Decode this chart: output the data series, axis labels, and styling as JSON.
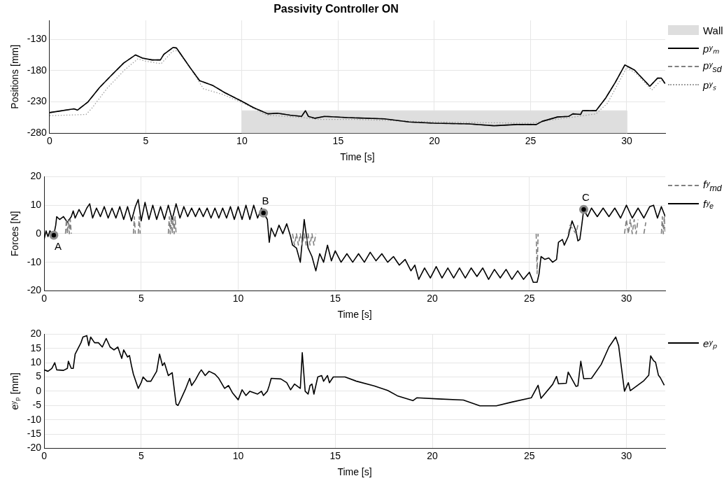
{
  "chart_data": [
    {
      "type": "line",
      "title": "Passivity Controller ON",
      "xlabel": "Time [s]",
      "ylabel": "Positions [mm]",
      "xlim": [
        0,
        32
      ],
      "xticks": [
        0,
        5,
        10,
        15,
        20,
        25,
        30
      ],
      "ylim": [
        -280,
        -100
      ],
      "yticks": [
        -280,
        -230,
        -180,
        -130
      ],
      "grid": true,
      "legend": "right",
      "marker": "none",
      "series": [
        {
          "name": "Wall",
          "type": "area",
          "color": "#dedede",
          "x": [
            10,
            10,
            20,
            30,
            30
          ],
          "values": [
            -280,
            -244,
            -244,
            -244,
            -280
          ]
        },
        {
          "name": "pʸₘ",
          "color": "#000000",
          "line_style": "solid",
          "x": [
            0,
            0.65,
            1.27,
            1.45,
            2.0,
            2.6,
            3.2,
            3.85,
            4.47,
            4.83,
            5.33,
            5.76,
            5.94,
            6.43,
            6.6,
            7.3,
            7.8,
            8.5,
            9.1,
            10,
            10.6,
            11.35,
            11.85,
            12.5,
            13.1,
            13.3,
            13.45,
            13.8,
            14.3,
            15.5,
            17.4,
            18.7,
            20,
            21.8,
            23.1,
            24.3,
            25.3,
            25.6,
            26.4,
            26.98,
            27.2,
            27.6,
            27.7,
            28.4,
            28.9,
            29.4,
            29.9,
            30.4,
            31.2,
            31.6,
            31.8,
            32
          ],
          "values": [
            -247,
            -244,
            -241,
            -243,
            -230,
            -207,
            -188,
            -168,
            -155,
            -160,
            -163,
            -163,
            -154,
            -143,
            -144,
            -175,
            -196,
            -204,
            -215,
            -229,
            -239,
            -249,
            -248,
            -251,
            -253,
            -244,
            -253,
            -256,
            -253,
            -255,
            -257,
            -262,
            -264,
            -265,
            -268,
            -266,
            -266,
            -261,
            -254,
            -253,
            -249,
            -250,
            -244,
            -244,
            -224,
            -199,
            -171,
            -179,
            -205,
            -192,
            -192,
            -201
          ]
        },
        {
          "name": "pʸ$_{sd}$",
          "color": "#808080",
          "line_style": "dashed",
          "x": [
            0,
            0.65,
            1.27,
            1.45,
            2.0,
            2.6,
            3.2,
            3.85,
            4.47,
            4.83,
            5.33,
            5.76,
            5.94,
            6.43,
            6.6,
            7.3,
            7.8,
            8.5,
            9.1,
            10,
            10.6,
            11.35,
            11.85,
            12.5,
            13.1,
            13.3,
            13.45,
            13.8,
            14.3,
            15.5,
            17.4,
            18.7,
            20,
            21.8,
            23.1,
            24.3,
            25.3,
            25.6,
            26.4,
            26.98,
            27.2,
            27.6,
            27.7,
            28.4,
            28.9,
            29.4,
            29.9,
            30.4,
            31.2,
            31.6,
            31.8,
            32
          ],
          "values": [
            -247,
            -244,
            -241,
            -243,
            -230,
            -207,
            -188,
            -168,
            -155,
            -160,
            -163,
            -163,
            -154,
            -143,
            -144,
            -175,
            -196,
            -204,
            -215,
            -229,
            -239,
            -249,
            -248,
            -251,
            -253,
            -244,
            -253,
            -256,
            -253,
            -255,
            -257,
            -262,
            -264,
            -265,
            -268,
            -266,
            -266,
            -261,
            -254,
            -253,
            -249,
            -250,
            -244,
            -244,
            -224,
            -199,
            -171,
            -179,
            -205,
            -192,
            -192,
            -201
          ]
        },
        {
          "name": "pʸₛ",
          "color": "#a0a0a0",
          "line_style": "dotted",
          "x": [
            0,
            1.9,
            2.2,
            3,
            3.9,
            4.6,
            5,
            5.8,
            6.4,
            6.65,
            7.4,
            8,
            9,
            10,
            11.3,
            13.2,
            14,
            16,
            20,
            25,
            26.5,
            27.5,
            28.4,
            29,
            30,
            30.5,
            31.3,
            31.8,
            32
          ],
          "values": [
            -252,
            -250,
            -240,
            -208,
            -179,
            -161,
            -165,
            -169,
            -149,
            -148,
            -180,
            -209,
            -218,
            -231,
            -251,
            -255,
            -258,
            -258,
            -262,
            -264,
            -257,
            -253,
            -249,
            -232,
            -175,
            -185,
            -211,
            -195,
            -202
          ]
        }
      ]
    },
    {
      "type": "line",
      "xlabel": "Time [s]",
      "ylabel": "Forces [N]",
      "xlim": [
        0,
        32
      ],
      "xticks": [
        0,
        5,
        10,
        15,
        20,
        25,
        30
      ],
      "ylim": [
        -20,
        20
      ],
      "yticks": [
        -20,
        -10,
        0,
        10,
        20
      ],
      "grid": true,
      "legend": "right",
      "marker": "none",
      "annotations": [
        {
          "text": "A",
          "x": 0.5,
          "y": -0.5
        },
        {
          "text": "B",
          "x": 11.3,
          "y": 7.3
        },
        {
          "text": "C",
          "x": 27.8,
          "y": 8.5
        }
      ],
      "series": [
        {
          "name": "fʸ$_{md}$",
          "color": "#808080",
          "line_style": "dashed",
          "x": [
            1.1,
            1.15,
            1.2,
            1.25,
            1.3,
            1.35,
            1.4,
            1.45,
            4.6,
            4.65,
            4.7,
            4.75,
            4.85,
            4.9,
            4.95,
            5.0,
            6.4,
            6.45,
            6.5,
            6.55,
            6.6,
            6.65,
            6.7,
            6.75,
            6.8,
            6.85,
            12.8,
            12.9,
            13.0,
            13.1,
            13.2,
            13.3,
            13.4,
            13.5,
            13.6,
            13.7,
            13.8,
            13.9,
            14.0,
            14.05,
            25.35,
            25.4,
            25.45,
            25.5,
            27.0,
            27.1,
            27.4,
            27.5,
            27.55,
            29.9,
            30.0,
            30.1,
            30.2,
            30.3,
            30.4,
            30.5,
            30.6,
            30.65,
            30.9,
            31.0,
            31.05,
            31.8,
            31.85,
            31.9,
            31.95,
            32
          ],
          "values": [
            0,
            5,
            0,
            5,
            0,
            5,
            0,
            null,
            0,
            6,
            0,
            null,
            0,
            6,
            0,
            null,
            0,
            6,
            0,
            6,
            0,
            6,
            0,
            6,
            0,
            null,
            0,
            -4,
            0,
            -4,
            0,
            -4,
            0,
            -4,
            0,
            -4,
            0,
            -4,
            0,
            null,
            0,
            -14,
            0,
            null,
            0,
            3,
            0,
            3,
            null,
            0,
            5,
            0,
            5,
            0,
            5,
            0,
            5,
            null,
            0,
            4,
            null,
            0,
            6,
            0,
            6,
            0
          ]
        },
        {
          "name": "fʸₑ",
          "color": "#000000",
          "line_style": "solid",
          "x": [
            0,
            0.1,
            0.2,
            0.3,
            0.4,
            0.5,
            0.6,
            0.65,
            0.8,
            1.0,
            1.2,
            1.4,
            1.5,
            1.6,
            1.8,
            2.0,
            2.2,
            2.35,
            2.5,
            2.7,
            2.9,
            3.1,
            3.3,
            3.5,
            3.7,
            3.9,
            4.1,
            4.3,
            4.5,
            4.7,
            4.85,
            5.0,
            5.2,
            5.4,
            5.6,
            5.8,
            6.0,
            6.2,
            6.4,
            6.6,
            6.8,
            7.0,
            7.2,
            7.4,
            7.6,
            7.8,
            8.0,
            8.2,
            8.4,
            8.6,
            8.8,
            9.0,
            9.2,
            9.4,
            9.6,
            9.8,
            10.0,
            10.2,
            10.4,
            10.6,
            10.8,
            11.0,
            11.2,
            11.3,
            11.5,
            11.6,
            11.7,
            11.9,
            12.1,
            12.3,
            12.5,
            12.7,
            12.8,
            13.0,
            13.2,
            13.4,
            13.6,
            13.8,
            14.0,
            14.2,
            14.4,
            14.6,
            14.8,
            15.0,
            15.3,
            15.6,
            15.9,
            16.2,
            16.5,
            16.8,
            17.1,
            17.4,
            17.7,
            18.0,
            18.3,
            18.6,
            18.9,
            19.1,
            19.3,
            19.6,
            19.9,
            20.2,
            20.5,
            20.8,
            21.1,
            21.4,
            21.7,
            22.0,
            22.3,
            22.6,
            22.9,
            23.2,
            23.5,
            23.8,
            24.1,
            24.4,
            24.7,
            25.0,
            25.2,
            25.4,
            25.5,
            25.6,
            25.8,
            26.0,
            26.2,
            26.4,
            26.5,
            26.7,
            26.8,
            27.0,
            27.2,
            27.4,
            27.5,
            27.6,
            27.7,
            27.8,
            28.0,
            28.2,
            28.5,
            28.8,
            29.1,
            29.4,
            29.7,
            30.0,
            30.3,
            30.6,
            30.9,
            31.2,
            31.4,
            31.6,
            31.8,
            32.0
          ],
          "values": [
            -2,
            1,
            -1,
            1,
            0,
            -0.5,
            3,
            6,
            5,
            6,
            4,
            6,
            8,
            5.5,
            8.5,
            6,
            9,
            10.5,
            5.5,
            9,
            6,
            9.5,
            5.5,
            9,
            5.5,
            9.5,
            5,
            9.5,
            4.5,
            9.5,
            12,
            4.5,
            11,
            5,
            10,
            5,
            9.5,
            5,
            10,
            5,
            10.5,
            5.5,
            9.5,
            6,
            9,
            6,
            9,
            6,
            9,
            5.5,
            9,
            5.5,
            9,
            5.5,
            9.5,
            5,
            9.5,
            5,
            10,
            5,
            10,
            5.5,
            9,
            7.3,
            5,
            -3,
            2,
            -1,
            3,
            0,
            3.5,
            -1,
            -4,
            -5,
            -10,
            5,
            -5,
            -8,
            -13,
            -7,
            -10,
            -4,
            -9.5,
            -6,
            -10,
            -7,
            -10,
            -7,
            -10,
            -6.5,
            -9.5,
            -7,
            -10,
            -8,
            -11,
            -9,
            -13,
            -11,
            -16,
            -12,
            -15.5,
            -11.5,
            -15.5,
            -12,
            -15.5,
            -12,
            -15.5,
            -12,
            -15,
            -12,
            -16,
            -12.5,
            -15.5,
            -12.5,
            -16,
            -13,
            -16,
            -13.5,
            -17,
            -17,
            -14,
            -8,
            -9,
            -8.5,
            -10,
            -9,
            -3,
            -2,
            -4,
            -1,
            4.5,
            1,
            -2.5,
            -2,
            3,
            8.5,
            6,
            9,
            6,
            9,
            6,
            9,
            5.5,
            10,
            5.5,
            9,
            5.5,
            9.5,
            10,
            5.5,
            9.5,
            6
          ]
        }
      ]
    },
    {
      "type": "line",
      "xlabel": "Time [s]",
      "ylabel": "eʸₚ [mm]",
      "xlim": [
        0,
        32
      ],
      "xticks": [
        0,
        5,
        10,
        15,
        20,
        25,
        30
      ],
      "ylim": [
        -20,
        20
      ],
      "yticks": [
        -20,
        -15,
        -10,
        -5,
        0,
        5,
        10,
        15,
        20
      ],
      "grid": true,
      "legend": "right",
      "marker": "none",
      "series": [
        {
          "name": "eʸₚ",
          "color": "#000000",
          "line_style": "solid",
          "x": [
            0,
            0.2,
            0.4,
            0.55,
            0.65,
            1.0,
            1.2,
            1.25,
            1.4,
            1.5,
            1.6,
            1.9,
            2.0,
            2.2,
            2.3,
            2.4,
            2.6,
            2.8,
            3.0,
            3.2,
            3.4,
            3.6,
            3.8,
            4.0,
            4.1,
            4.3,
            4.4,
            4.5,
            4.6,
            4.75,
            4.85,
            5.0,
            5.1,
            5.3,
            5.5,
            5.8,
            5.95,
            6.1,
            6.2,
            6.4,
            6.6,
            6.8,
            6.9,
            7.1,
            7.3,
            7.5,
            7.6,
            7.8,
            8.0,
            8.1,
            8.3,
            8.5,
            8.8,
            9.0,
            9.3,
            9.5,
            9.7,
            10.0,
            10.2,
            10.4,
            10.6,
            11.0,
            11.2,
            11.3,
            11.5,
            11.6,
            11.7,
            12.2,
            12.5,
            12.7,
            12.9,
            13.2,
            13.3,
            13.45,
            13.6,
            13.7,
            13.8,
            13.9,
            14.1,
            14.3,
            14.4,
            14.6,
            14.7,
            14.9,
            15.5,
            16.1,
            17,
            17.7,
            18.2,
            19,
            19.2,
            20.3,
            21.6,
            22.45,
            23.3,
            24.1,
            25.1,
            25.45,
            25.6,
            26.2,
            26.4,
            26.5,
            26.9,
            27.0,
            27.4,
            27.5,
            27.65,
            27.8,
            28.2,
            28.7,
            29.1,
            29.45,
            29.6,
            29.9,
            30.1,
            30.2,
            30.9,
            31.15,
            31.25,
            31.4,
            31.5,
            31.65,
            31.75,
            31.95
          ],
          "values": [
            7.5,
            7,
            8,
            10,
            7.5,
            7.3,
            8,
            10.5,
            8,
            8,
            13,
            17,
            19,
            19.5,
            16,
            19,
            17,
            17,
            15.5,
            18.5,
            15.5,
            14.5,
            15.5,
            11.5,
            14.5,
            12,
            12.5,
            9,
            6,
            3,
            1,
            3,
            5,
            3.5,
            3.5,
            7,
            13,
            9,
            10,
            5.5,
            6.5,
            -4.5,
            -5,
            -2,
            1,
            4.5,
            2,
            4,
            6.5,
            7.5,
            5.5,
            7,
            6,
            4.5,
            1,
            2,
            -0.5,
            -3,
            0.5,
            -1.5,
            0,
            -1,
            0,
            -1.5,
            0,
            2,
            4.5,
            4.3,
            3,
            0.5,
            2.5,
            1,
            13.5,
            0,
            -1,
            2,
            2.5,
            -1,
            5,
            5.5,
            3.5,
            5.5,
            3,
            5,
            5,
            3.5,
            1.9,
            0.3,
            -1.6,
            -3.3,
            -2.3,
            -2.7,
            -3.1,
            -5.1,
            -5.1,
            -3.8,
            -2.3,
            2.1,
            -2.5,
            2.4,
            5.2,
            2.6,
            2.8,
            6.7,
            1.7,
            1.9,
            10.5,
            4.4,
            4.5,
            9.4,
            15.5,
            19,
            15.9,
            0,
            3,
            0.2,
            3.7,
            5.6,
            12.4,
            10.7,
            10.2,
            5.6,
            4.7,
            2.1
          ]
        }
      ]
    }
  ]
}
